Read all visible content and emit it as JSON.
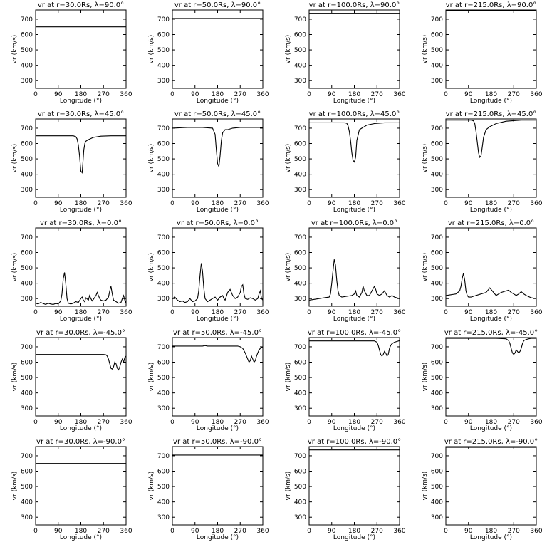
{
  "figure": {
    "xlabel": "Longitude (°)",
    "ylabel": "vr (km/s)",
    "xticks": [
      0,
      90,
      180,
      270,
      360
    ],
    "yticks": [
      300,
      400,
      500,
      600,
      700
    ],
    "xlim": [
      0,
      360
    ],
    "ylim": [
      250,
      760
    ]
  },
  "chart_data": [
    {
      "type": "line",
      "title": "vr at r=30.0Rs, λ=90.0°",
      "radius": "30.0Rs",
      "latitude": "90.0°",
      "x": [
        0,
        360
      ],
      "y": [
        650,
        650
      ]
    },
    {
      "type": "line",
      "title": "vr at r=50.0Rs, λ=90.0°",
      "radius": "50.0Rs",
      "latitude": "90.0°",
      "x": [
        0,
        360
      ],
      "y": [
        705,
        705
      ]
    },
    {
      "type": "line",
      "title": "vr at r=100.0Rs, λ=90.0°",
      "radius": "100.0Rs",
      "latitude": "90.0°",
      "x": [
        0,
        360
      ],
      "y": [
        738,
        738
      ]
    },
    {
      "type": "line",
      "title": "vr at r=215.0Rs, λ=90.0°",
      "radius": "215.0Rs",
      "latitude": "90.0°",
      "x": [
        0,
        360
      ],
      "y": [
        755,
        755
      ]
    },
    {
      "type": "line",
      "title": "vr at r=30.0Rs, λ=45.0°",
      "radius": "30.0Rs",
      "latitude": "45.0°",
      "x": [
        0,
        150,
        160,
        165,
        170,
        175,
        180,
        185,
        188,
        192,
        196,
        200,
        210,
        230,
        260,
        300,
        360
      ],
      "y": [
        650,
        650,
        645,
        630,
        590,
        520,
        420,
        410,
        470,
        560,
        600,
        615,
        625,
        640,
        648,
        650,
        650
      ]
    },
    {
      "type": "line",
      "title": "vr at r=50.0Rs, λ=45.0°",
      "radius": "50.0Rs",
      "latitude": "45.0°",
      "x": [
        0,
        60,
        120,
        160,
        170,
        175,
        180,
        185,
        190,
        195,
        200,
        210,
        220,
        240,
        270,
        300,
        360
      ],
      "y": [
        700,
        705,
        705,
        700,
        660,
        560,
        470,
        450,
        520,
        620,
        670,
        690,
        690,
        700,
        705,
        705,
        705
      ]
    },
    {
      "type": "line",
      "title": "vr at r=100.0Rs, λ=45.0°",
      "radius": "100.0Rs",
      "latitude": "45.0°",
      "x": [
        0,
        140,
        150,
        155,
        160,
        165,
        170,
        175,
        180,
        185,
        190,
        200,
        210,
        230,
        260,
        300,
        360
      ],
      "y": [
        735,
        735,
        732,
        715,
        680,
        620,
        540,
        490,
        480,
        510,
        620,
        690,
        700,
        720,
        730,
        735,
        735
      ]
    },
    {
      "type": "line",
      "title": "vr at r=215.0Rs, λ=45.0°",
      "radius": "215.0Rs",
      "latitude": "45.0°",
      "x": [
        0,
        100,
        110,
        115,
        120,
        125,
        130,
        135,
        140,
        145,
        150,
        160,
        175,
        200,
        240,
        300,
        360
      ],
      "y": [
        752,
        752,
        748,
        730,
        680,
        610,
        540,
        510,
        520,
        580,
        640,
        690,
        710,
        730,
        745,
        752,
        752
      ]
    },
    {
      "type": "line",
      "title": "vr at r=30.0Rs, λ=0.0°",
      "radius": "30.0Rs",
      "latitude": "0.0°",
      "x": [
        0,
        10,
        20,
        30,
        40,
        50,
        60,
        70,
        80,
        90,
        100,
        105,
        110,
        115,
        120,
        125,
        130,
        140,
        150,
        160,
        170,
        180,
        185,
        190,
        195,
        200,
        210,
        215,
        220,
        225,
        230,
        240,
        245,
        250,
        255,
        260,
        270,
        280,
        290,
        295,
        300,
        305,
        310,
        320,
        330,
        340,
        345,
        350,
        355,
        360
      ],
      "y": [
        270,
        265,
        275,
        268,
        262,
        270,
        265,
        262,
        268,
        265,
        285,
        330,
        430,
        470,
        400,
        300,
        270,
        265,
        270,
        280,
        275,
        300,
        310,
        290,
        280,
        305,
        290,
        320,
        300,
        285,
        295,
        320,
        340,
        320,
        300,
        290,
        285,
        290,
        310,
        350,
        380,
        330,
        290,
        280,
        270,
        275,
        300,
        320,
        290,
        270
      ]
    },
    {
      "type": "line",
      "title": "vr at r=50.0Rs, λ=0.0°",
      "radius": "50.0Rs",
      "latitude": "0.0°",
      "x": [
        0,
        10,
        20,
        30,
        40,
        50,
        60,
        70,
        80,
        90,
        100,
        105,
        110,
        115,
        120,
        125,
        130,
        140,
        150,
        160,
        170,
        180,
        190,
        200,
        205,
        210,
        220,
        230,
        240,
        250,
        260,
        270,
        275,
        280,
        285,
        290,
        300,
        310,
        320,
        330,
        340,
        345,
        350,
        355,
        360
      ],
      "y": [
        300,
        310,
        290,
        280,
        285,
        275,
        280,
        300,
        280,
        285,
        300,
        350,
        450,
        530,
        480,
        370,
        300,
        280,
        290,
        300,
        310,
        290,
        310,
        320,
        300,
        290,
        340,
        360,
        320,
        300,
        310,
        340,
        380,
        390,
        330,
        300,
        295,
        305,
        300,
        290,
        300,
        330,
        350,
        300,
        290
      ]
    },
    {
      "type": "line",
      "title": "vr at r=100.0Rs, λ=0.0°",
      "radius": "100.0Rs",
      "latitude": "0.0°",
      "x": [
        0,
        20,
        40,
        60,
        80,
        85,
        90,
        95,
        100,
        105,
        110,
        115,
        120,
        130,
        150,
        170,
        180,
        185,
        190,
        200,
        210,
        215,
        220,
        230,
        240,
        250,
        260,
        265,
        270,
        280,
        290,
        300,
        310,
        320,
        330,
        340,
        360
      ],
      "y": [
        290,
        295,
        300,
        305,
        310,
        330,
        400,
        480,
        555,
        520,
        420,
        350,
        320,
        310,
        315,
        320,
        330,
        350,
        320,
        310,
        340,
        380,
        350,
        320,
        320,
        350,
        380,
        360,
        330,
        320,
        330,
        350,
        320,
        310,
        320,
        310,
        300
      ]
    },
    {
      "type": "line",
      "title": "vr at r=215.0Rs, λ=0.0°",
      "radius": "215.0Rs",
      "latitude": "0.0°",
      "x": [
        0,
        20,
        40,
        55,
        60,
        65,
        70,
        75,
        80,
        85,
        90,
        100,
        120,
        140,
        160,
        170,
        175,
        180,
        190,
        200,
        210,
        220,
        230,
        240,
        250,
        260,
        270,
        280,
        290,
        300,
        310,
        320,
        340,
        360
      ],
      "y": [
        320,
        325,
        330,
        350,
        380,
        430,
        465,
        420,
        350,
        320,
        310,
        310,
        320,
        330,
        340,
        360,
        370,
        360,
        340,
        320,
        330,
        340,
        345,
        350,
        355,
        340,
        330,
        320,
        330,
        345,
        330,
        320,
        305,
        300
      ]
    },
    {
      "type": "line",
      "title": "vr at r=30.0Rs, λ=-45.0°",
      "radius": "30.0Rs",
      "latitude": "-45.0°",
      "x": [
        0,
        100,
        200,
        270,
        280,
        285,
        290,
        295,
        300,
        305,
        310,
        315,
        320,
        325,
        330,
        335,
        340,
        345,
        350,
        355,
        360
      ],
      "y": [
        650,
        650,
        650,
        650,
        648,
        640,
        620,
        590,
        560,
        555,
        570,
        600,
        590,
        560,
        550,
        570,
        600,
        620,
        600,
        630,
        640
      ]
    },
    {
      "type": "line",
      "title": "vr at r=50.0Rs, λ=-45.0°",
      "radius": "50.0Rs",
      "latitude": "-45.0°",
      "x": [
        0,
        60,
        120,
        130,
        140,
        200,
        260,
        270,
        280,
        290,
        300,
        305,
        310,
        315,
        320,
        325,
        330,
        335,
        340,
        345,
        350,
        360
      ],
      "y": [
        705,
        705,
        705,
        708,
        705,
        705,
        705,
        700,
        690,
        660,
        620,
        600,
        610,
        640,
        620,
        600,
        610,
        640,
        660,
        680,
        690,
        700
      ]
    },
    {
      "type": "line",
      "title": "vr at r=100.0Rs, λ=-45.0°",
      "radius": "100.0Rs",
      "latitude": "-45.0°",
      "x": [
        0,
        100,
        200,
        260,
        270,
        275,
        280,
        285,
        290,
        295,
        300,
        305,
        310,
        315,
        320,
        325,
        330,
        340,
        350,
        360
      ],
      "y": [
        738,
        738,
        738,
        738,
        730,
        710,
        680,
        650,
        640,
        650,
        670,
        660,
        640,
        650,
        690,
        710,
        720,
        730,
        735,
        740
      ]
    },
    {
      "type": "line",
      "title": "vr at r=215.0Rs, λ=-45.0°",
      "radius": "215.0Rs",
      "latitude": "-45.0°",
      "x": [
        0,
        100,
        200,
        240,
        250,
        255,
        260,
        265,
        270,
        275,
        280,
        285,
        290,
        295,
        300,
        305,
        310,
        320,
        330,
        340,
        360
      ],
      "y": [
        755,
        755,
        755,
        752,
        740,
        720,
        690,
        660,
        650,
        660,
        680,
        670,
        660,
        670,
        690,
        720,
        740,
        748,
        752,
        755,
        755
      ]
    },
    {
      "type": "line",
      "title": "vr at r=30.0Rs, λ=-90.0°",
      "radius": "30.0Rs",
      "latitude": "-90.0°",
      "x": [
        0,
        360
      ],
      "y": [
        650,
        650
      ]
    },
    {
      "type": "line",
      "title": "vr at r=50.0Rs, λ=-90.0°",
      "radius": "50.0Rs",
      "latitude": "-90.0°",
      "x": [
        0,
        360
      ],
      "y": [
        705,
        705
      ]
    },
    {
      "type": "line",
      "title": "vr at r=100.0Rs, λ=-90.0°",
      "radius": "100.0Rs",
      "latitude": "-90.0°",
      "x": [
        0,
        360
      ],
      "y": [
        738,
        738
      ]
    },
    {
      "type": "line",
      "title": "vr at r=215.0Rs, λ=-90.0°",
      "radius": "215.0Rs",
      "latitude": "-90.0°",
      "x": [
        0,
        360
      ],
      "y": [
        755,
        755
      ]
    }
  ]
}
